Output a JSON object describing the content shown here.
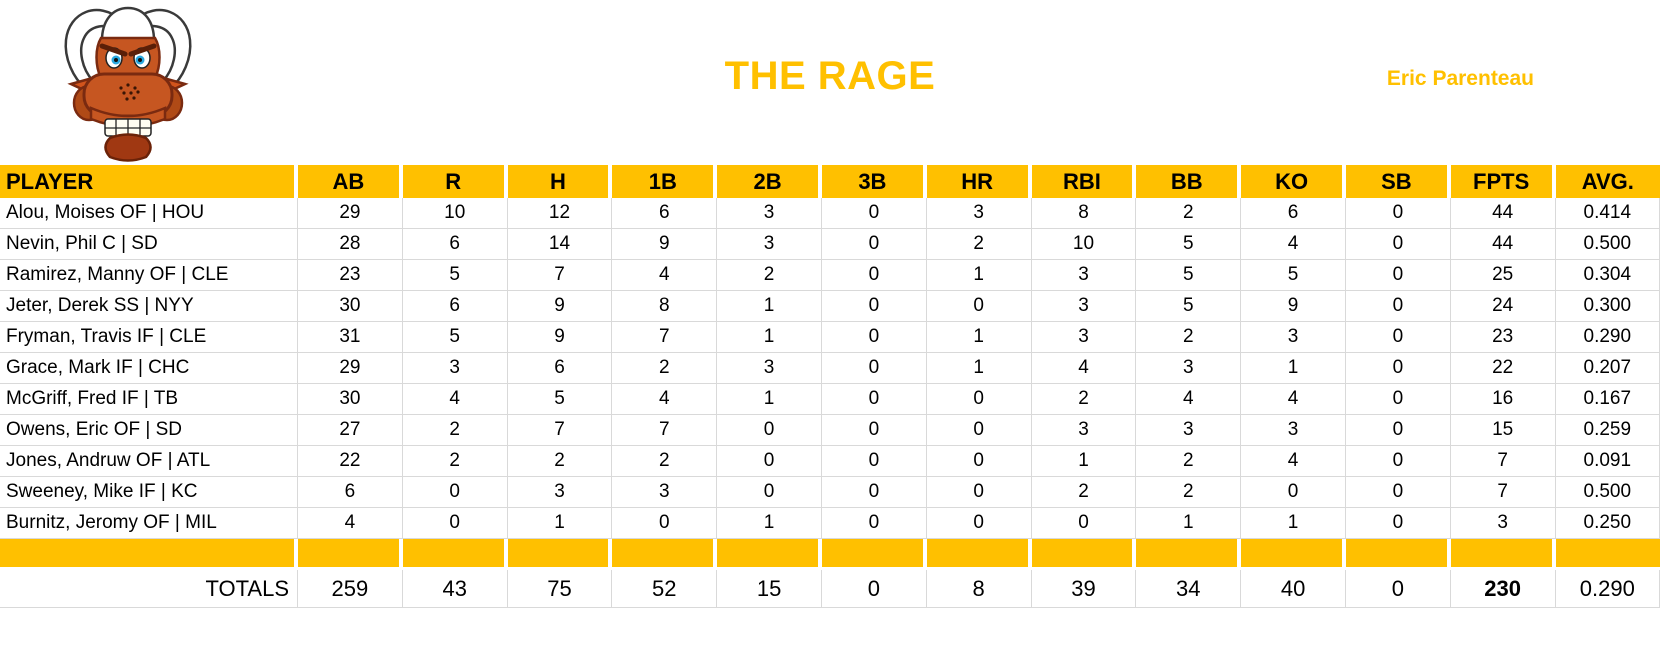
{
  "header": {
    "title": "THE RAGE",
    "owner": "Eric Parenteau",
    "logo_icon": "angry-bull-icon"
  },
  "colors": {
    "accent_gold": "#FFC000",
    "grid_line": "#D9D9D9",
    "text": "#000000"
  },
  "table": {
    "columns": [
      "PLAYER",
      "AB",
      "R",
      "H",
      "1B",
      "2B",
      "3B",
      "HR",
      "RBI",
      "BB",
      "KO",
      "SB",
      "FPTS",
      "AVG."
    ],
    "rows": [
      {
        "player": "Alou, Moises OF | HOU",
        "stats": [
          "29",
          "10",
          "12",
          "6",
          "3",
          "0",
          "3",
          "8",
          "2",
          "6",
          "0",
          "44",
          "0.414"
        ]
      },
      {
        "player": "Nevin, Phil C | SD",
        "stats": [
          "28",
          "6",
          "14",
          "9",
          "3",
          "0",
          "2",
          "10",
          "5",
          "4",
          "0",
          "44",
          "0.500"
        ]
      },
      {
        "player": "Ramirez, Manny OF | CLE",
        "stats": [
          "23",
          "5",
          "7",
          "4",
          "2",
          "0",
          "1",
          "3",
          "5",
          "5",
          "0",
          "25",
          "0.304"
        ]
      },
      {
        "player": "Jeter, Derek SS | NYY",
        "stats": [
          "30",
          "6",
          "9",
          "8",
          "1",
          "0",
          "0",
          "3",
          "5",
          "9",
          "0",
          "24",
          "0.300"
        ]
      },
      {
        "player": "Fryman, Travis IF | CLE",
        "stats": [
          "31",
          "5",
          "9",
          "7",
          "1",
          "0",
          "1",
          "3",
          "2",
          "3",
          "0",
          "23",
          "0.290"
        ]
      },
      {
        "player": "Grace, Mark IF | CHC",
        "stats": [
          "29",
          "3",
          "6",
          "2",
          "3",
          "0",
          "1",
          "4",
          "3",
          "1",
          "0",
          "22",
          "0.207"
        ]
      },
      {
        "player": "McGriff, Fred IF | TB",
        "stats": [
          "30",
          "4",
          "5",
          "4",
          "1",
          "0",
          "0",
          "2",
          "4",
          "4",
          "0",
          "16",
          "0.167"
        ]
      },
      {
        "player": "Owens, Eric OF | SD",
        "stats": [
          "27",
          "2",
          "7",
          "7",
          "0",
          "0",
          "0",
          "3",
          "3",
          "3",
          "0",
          "15",
          "0.259"
        ]
      },
      {
        "player": "Jones, Andruw OF | ATL",
        "stats": [
          "22",
          "2",
          "2",
          "2",
          "0",
          "0",
          "0",
          "1",
          "2",
          "4",
          "0",
          "7",
          "0.091"
        ]
      },
      {
        "player": "Sweeney, Mike IF | KC",
        "stats": [
          "6",
          "0",
          "3",
          "3",
          "0",
          "0",
          "0",
          "2",
          "2",
          "0",
          "0",
          "7",
          "0.500"
        ]
      },
      {
        "player": "Burnitz, Jeromy OF | MIL",
        "stats": [
          "4",
          "0",
          "1",
          "0",
          "1",
          "0",
          "0",
          "0",
          "1",
          "1",
          "0",
          "3",
          "0.250"
        ]
      }
    ],
    "totals": {
      "label": "TOTALS",
      "stats": [
        "259",
        "43",
        "75",
        "52",
        "15",
        "0",
        "8",
        "39",
        "34",
        "40",
        "0",
        "230",
        "0.290"
      ],
      "bold_column": "FPTS"
    }
  }
}
